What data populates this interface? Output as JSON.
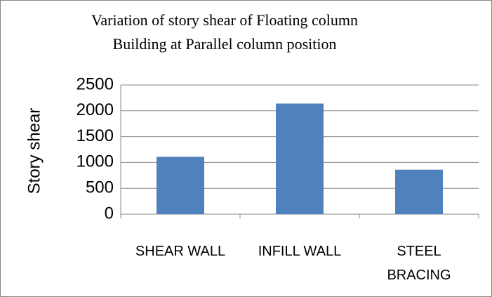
{
  "chart_data": {
    "type": "bar",
    "title": [
      "Variation of story shear of Floating column",
      "Building at Parallel column position"
    ],
    "y_label": "Story shear",
    "categories": [
      "SHEAR WALL",
      "INFILL WALL",
      "STEEL BRACING"
    ],
    "values": [
      1110,
      2140,
      860
    ],
    "color": "#4f81bd",
    "ylim": [
      0,
      2500
    ],
    "yticks": [
      0,
      500,
      1000,
      1500,
      2000,
      2500
    ],
    "grid": true
  }
}
